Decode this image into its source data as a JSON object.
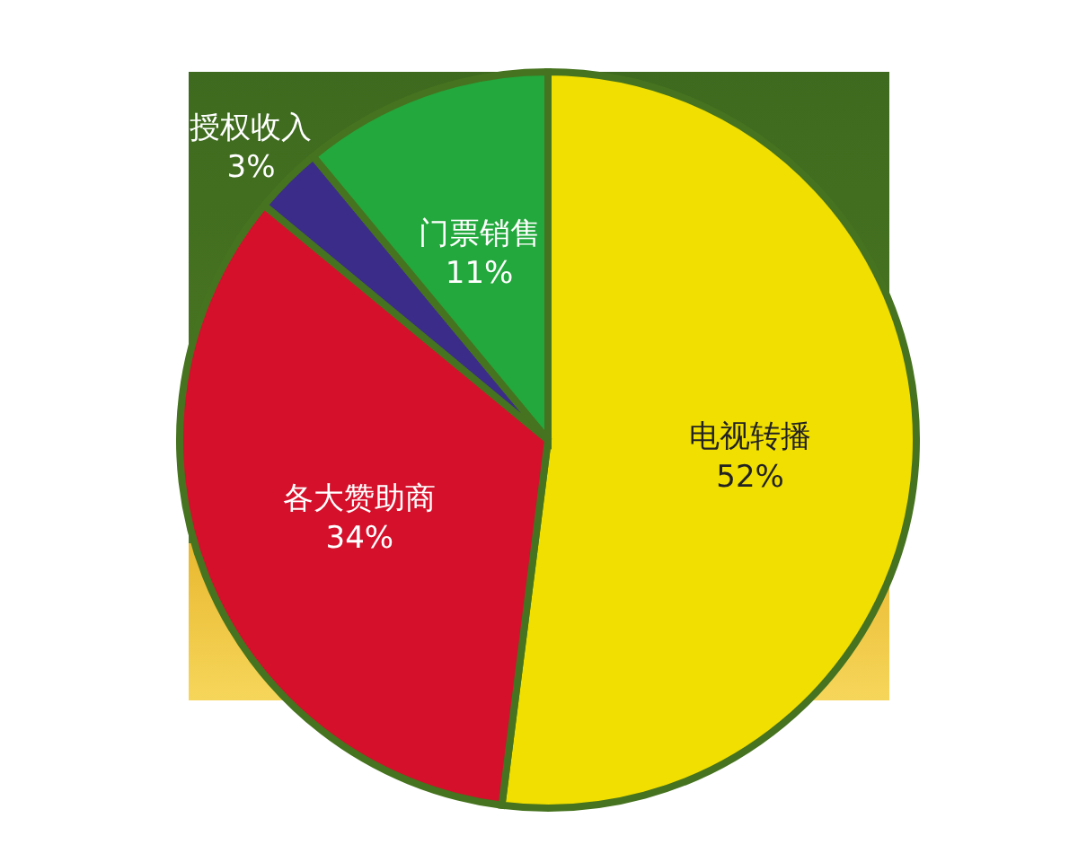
{
  "chart_data": {
    "type": "pie",
    "categories": [
      "电视转播",
      "各大赞助商",
      "授权收入",
      "门票销售"
    ],
    "values": [
      52,
      34,
      3,
      11
    ],
    "colors": [
      "#f0df00",
      "#d5102b",
      "#3b2c8a",
      "#22a83c"
    ],
    "value_labels": [
      "52%",
      "34%",
      "3%",
      "11%"
    ]
  }
}
